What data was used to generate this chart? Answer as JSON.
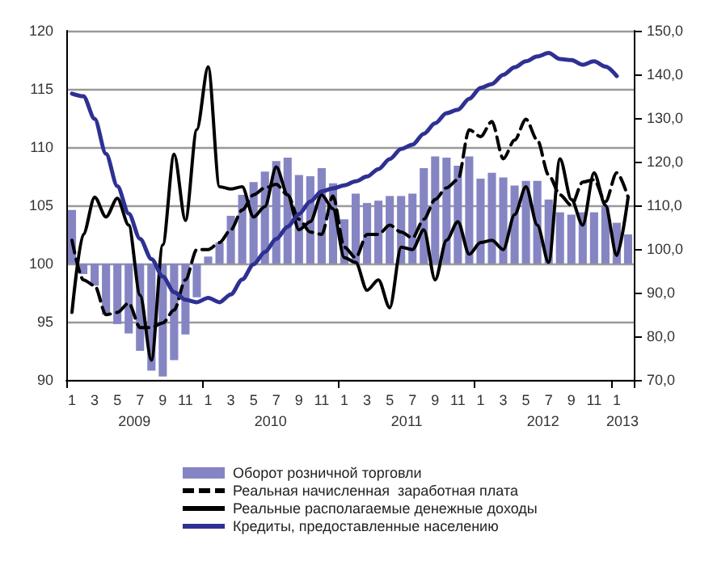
{
  "chart_data": {
    "type": "bar",
    "categories": [
      "1",
      null,
      "3",
      null,
      "5",
      null,
      "7",
      null,
      "9",
      null,
      "11",
      null,
      "1",
      null,
      "3",
      null,
      "5",
      null,
      "7",
      null,
      "9",
      null,
      "11",
      null,
      "1",
      null,
      "3",
      null,
      "5",
      null,
      "7",
      null,
      "9",
      null,
      "11",
      null,
      "1",
      null,
      "3",
      null,
      "5",
      null,
      "7",
      null,
      "9",
      null,
      "11",
      null,
      "1",
      null
    ],
    "series": [
      {
        "name": "Оборот розничной торговли",
        "color": "#8585c4",
        "base": [
          100,
          100,
          100,
          100,
          100,
          100,
          100,
          100,
          100,
          100,
          100,
          100,
          100,
          100,
          100,
          100,
          100,
          100,
          100,
          100,
          100,
          100,
          100,
          100,
          100,
          100,
          100,
          100,
          100,
          100,
          100,
          100,
          100,
          100,
          100,
          100,
          100,
          100,
          100,
          100,
          100,
          100,
          100,
          100,
          100,
          100,
          100,
          100,
          100,
          100
        ],
        "values": [
          4.6,
          -0.9,
          -1.9,
          -4.4,
          -5.2,
          -6.0,
          -7.5,
          -9.2,
          -9.7,
          -8.3,
          -6.1,
          -2.9,
          0.6,
          1.8,
          4.1,
          5.9,
          7.0,
          7.9,
          8.8,
          9.1,
          7.6,
          7.5,
          8.2,
          6.9,
          3.8,
          6.0,
          5.2,
          5.4,
          5.8,
          5.8,
          6.0,
          8.2,
          9.2,
          9.1,
          8.4,
          9.2,
          7.3,
          7.8,
          7.4,
          6.7,
          7.1,
          7.1,
          5.5,
          4.4,
          4.2,
          4.4,
          4.4,
          5.0,
          3.5,
          2.5
        ]
      },
      {
        "name": "Реальная начисленная  заработная плата",
        "type": "line",
        "line_style": "dashed",
        "color": "#000000",
        "values": [
          102.0,
          98.6,
          98.1,
          95.6,
          95.8,
          96.6,
          94.5,
          94.5,
          94.9,
          96.0,
          98.6,
          101.2,
          101.2,
          101.8,
          102.9,
          104.6,
          105.9,
          106.5,
          106.8,
          105.9,
          103.8,
          102.7,
          102.5,
          105.8,
          101.4,
          100.5,
          102.5,
          102.5,
          103.3,
          102.7,
          102.2,
          103.8,
          105.5,
          106.5,
          107.2,
          111.5,
          110.9,
          112.2,
          109.0,
          110.6,
          112.4,
          110.6,
          107.6,
          105.9,
          105.0,
          107.0,
          107.2,
          105.3,
          107.8,
          105.7
        ]
      },
      {
        "name": "Реальные располагаемые денежные доходы",
        "type": "line",
        "line_style": "solid",
        "color": "#000000",
        "values": [
          95.8,
          102.5,
          105.7,
          104.0,
          105.6,
          103.3,
          97.3,
          91.7,
          101.6,
          109.4,
          103.7,
          111.5,
          116.9,
          106.6,
          106.4,
          106.6,
          104.0,
          104.9,
          108.3,
          105.9,
          102.9,
          103.6,
          105.9,
          104.7,
          100.5,
          100.1,
          97.7,
          98.6,
          96.2,
          101.4,
          101.2,
          102.9,
          98.6,
          102.0,
          103.6,
          100.8,
          101.8,
          102.0,
          101.2,
          104.2,
          106.6,
          103.3,
          100.1,
          109.0,
          105.5,
          103.3,
          107.8,
          105.0,
          100.7,
          105.7
        ]
      },
      {
        "name": "Кредиты, предоставленные населению",
        "type": "line",
        "line_style": "solid",
        "axis": "y2",
        "color": "#2e3192",
        "values": [
          135.6,
          135.0,
          129.8,
          121.8,
          114.4,
          108.1,
          102.3,
          97.7,
          93.7,
          90.1,
          88.4,
          87.8,
          88.8,
          87.8,
          89.6,
          93.0,
          96.5,
          99.3,
          102.3,
          105.1,
          108.0,
          110.9,
          113.2,
          113.9,
          114.6,
          115.5,
          116.6,
          118.3,
          120.6,
          122.9,
          123.9,
          126.4,
          128.8,
          131.1,
          131.9,
          134.4,
          136.9,
          137.8,
          139.9,
          141.6,
          143.0,
          144.1,
          144.9,
          143.5,
          143.3,
          142.2,
          143.0,
          141.8,
          139.6,
          null
        ]
      }
    ],
    "ylim": [
      90,
      120
    ],
    "yticks": [
      90,
      95,
      100,
      105,
      110,
      115,
      120
    ],
    "y2lim": [
      70,
      150
    ],
    "y2ticks": [
      {
        "value": 70,
        "label": "70,0"
      },
      {
        "value": 80,
        "label": "80,0"
      },
      {
        "value": 90,
        "label": "90,0"
      },
      {
        "value": 100,
        "label": "100,0"
      },
      {
        "value": 110,
        "label": "110,0"
      },
      {
        "value": 120,
        "label": "120,0"
      },
      {
        "value": 130,
        "label": "130,0"
      },
      {
        "value": 140,
        "label": "140,0"
      },
      {
        "value": 150,
        "label": "150,0"
      }
    ],
    "annotations": [
      "2009",
      "2010",
      "2011",
      "2012",
      "2013"
    ],
    "grid": true,
    "legend": "bottom",
    "marker": "none"
  }
}
